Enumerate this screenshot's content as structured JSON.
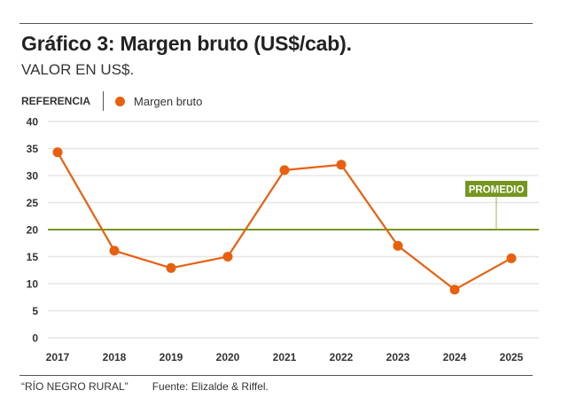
{
  "header": {
    "title": "Gráfico 3: Margen bruto (US$/cab).",
    "subtitle": "VALOR EN US$."
  },
  "legend": {
    "reference_label": "REFERENCIA",
    "series_label": "Margen bruto"
  },
  "colors": {
    "series": "#e8600f",
    "average": "#76961f",
    "grid": "#e6e6e6"
  },
  "chart_data": {
    "type": "line",
    "title": "Gráfico 3: Margen bruto (US$/cab).",
    "subtitle": "VALOR EN US$.",
    "xlabel": "",
    "ylabel": "",
    "categories": [
      "2017",
      "2018",
      "2019",
      "2020",
      "2021",
      "2022",
      "2023",
      "2024",
      "2025"
    ],
    "series": [
      {
        "name": "Margen bruto",
        "values": [
          34.3,
          16.1,
          12.9,
          15.0,
          31.0,
          32.0,
          17.0,
          8.9,
          14.7
        ]
      }
    ],
    "reference_line": {
      "label": "PROMEDIO",
      "value": 20
    },
    "ylim": [
      0,
      40
    ],
    "yticks": [
      0,
      5,
      10,
      15,
      20,
      25,
      30,
      35,
      40
    ],
    "grid": true,
    "legend": "top-left"
  },
  "footer": {
    "publication": "“RÍO NEGRO RURAL”",
    "source": "Fuente: Elizalde & Riffel."
  }
}
